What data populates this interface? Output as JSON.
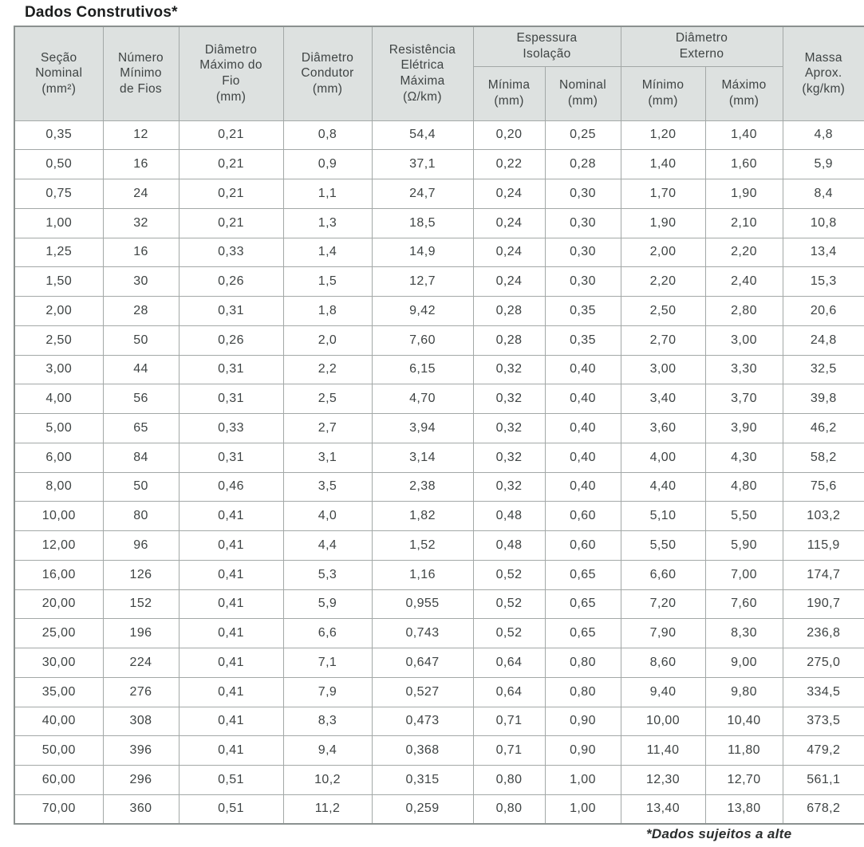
{
  "page": {
    "title": "Dados Construtivos*",
    "footnote": "*Dados sujeitos a alte"
  },
  "colors": {
    "header_bg": "#dde1e0",
    "border": "#a3a8a7",
    "outer_border": "#8b9190",
    "text": "#3f4444",
    "title_color": "#1b1d1d"
  },
  "table": {
    "headers": {
      "secao_nominal": [
        "Seção",
        "Nominal",
        "(mm²)"
      ],
      "numero_minimo_fios": [
        "Número",
        "Mínimo",
        "de Fios"
      ],
      "diametro_maximo_fio": [
        "Diâmetro",
        "Máximo do",
        "Fio",
        "(mm)"
      ],
      "diametro_condutor": [
        "Diâmetro",
        "Condutor",
        "(mm)"
      ],
      "resistencia_eletrica": [
        "Resistência",
        "Elétrica",
        "Máxima",
        "(Ω/km)"
      ],
      "espessura_isolacao": [
        "Espessura",
        "Isolação"
      ],
      "diametro_externo": [
        "Diâmetro",
        "Externo"
      ],
      "isolacao_minima": [
        "Mínima",
        "(mm)"
      ],
      "isolacao_nominal": [
        "Nominal",
        "(mm)"
      ],
      "externo_minimo": [
        "Mínimo",
        "(mm)"
      ],
      "externo_maximo": [
        "Máximo",
        "(mm)"
      ],
      "massa_aprox": [
        "Massa",
        "Aprox.",
        "(kg/km)"
      ]
    },
    "rows": [
      [
        "0,35",
        "12",
        "0,21",
        "0,8",
        "54,4",
        "0,20",
        "0,25",
        "1,20",
        "1,40",
        "4,8"
      ],
      [
        "0,50",
        "16",
        "0,21",
        "0,9",
        "37,1",
        "0,22",
        "0,28",
        "1,40",
        "1,60",
        "5,9"
      ],
      [
        "0,75",
        "24",
        "0,21",
        "1,1",
        "24,7",
        "0,24",
        "0,30",
        "1,70",
        "1,90",
        "8,4"
      ],
      [
        "1,00",
        "32",
        "0,21",
        "1,3",
        "18,5",
        "0,24",
        "0,30",
        "1,90",
        "2,10",
        "10,8"
      ],
      [
        "1,25",
        "16",
        "0,33",
        "1,4",
        "14,9",
        "0,24",
        "0,30",
        "2,00",
        "2,20",
        "13,4"
      ],
      [
        "1,50",
        "30",
        "0,26",
        "1,5",
        "12,7",
        "0,24",
        "0,30",
        "2,20",
        "2,40",
        "15,3"
      ],
      [
        "2,00",
        "28",
        "0,31",
        "1,8",
        "9,42",
        "0,28",
        "0,35",
        "2,50",
        "2,80",
        "20,6"
      ],
      [
        "2,50",
        "50",
        "0,26",
        "2,0",
        "7,60",
        "0,28",
        "0,35",
        "2,70",
        "3,00",
        "24,8"
      ],
      [
        "3,00",
        "44",
        "0,31",
        "2,2",
        "6,15",
        "0,32",
        "0,40",
        "3,00",
        "3,30",
        "32,5"
      ],
      [
        "4,00",
        "56",
        "0,31",
        "2,5",
        "4,70",
        "0,32",
        "0,40",
        "3,40",
        "3,70",
        "39,8"
      ],
      [
        "5,00",
        "65",
        "0,33",
        "2,7",
        "3,94",
        "0,32",
        "0,40",
        "3,60",
        "3,90",
        "46,2"
      ],
      [
        "6,00",
        "84",
        "0,31",
        "3,1",
        "3,14",
        "0,32",
        "0,40",
        "4,00",
        "4,30",
        "58,2"
      ],
      [
        "8,00",
        "50",
        "0,46",
        "3,5",
        "2,38",
        "0,32",
        "0,40",
        "4,40",
        "4,80",
        "75,6"
      ],
      [
        "10,00",
        "80",
        "0,41",
        "4,0",
        "1,82",
        "0,48",
        "0,60",
        "5,10",
        "5,50",
        "103,2"
      ],
      [
        "12,00",
        "96",
        "0,41",
        "4,4",
        "1,52",
        "0,48",
        "0,60",
        "5,50",
        "5,90",
        "115,9"
      ],
      [
        "16,00",
        "126",
        "0,41",
        "5,3",
        "1,16",
        "0,52",
        "0,65",
        "6,60",
        "7,00",
        "174,7"
      ],
      [
        "20,00",
        "152",
        "0,41",
        "5,9",
        "0,955",
        "0,52",
        "0,65",
        "7,20",
        "7,60",
        "190,7"
      ],
      [
        "25,00",
        "196",
        "0,41",
        "6,6",
        "0,743",
        "0,52",
        "0,65",
        "7,90",
        "8,30",
        "236,8"
      ],
      [
        "30,00",
        "224",
        "0,41",
        "7,1",
        "0,647",
        "0,64",
        "0,80",
        "8,60",
        "9,00",
        "275,0"
      ],
      [
        "35,00",
        "276",
        "0,41",
        "7,9",
        "0,527",
        "0,64",
        "0,80",
        "9,40",
        "9,80",
        "334,5"
      ],
      [
        "40,00",
        "308",
        "0,41",
        "8,3",
        "0,473",
        "0,71",
        "0,90",
        "10,00",
        "10,40",
        "373,5"
      ],
      [
        "50,00",
        "396",
        "0,41",
        "9,4",
        "0,368",
        "0,71",
        "0,90",
        "11,40",
        "11,80",
        "479,2"
      ],
      [
        "60,00",
        "296",
        "0,51",
        "10,2",
        "0,315",
        "0,80",
        "1,00",
        "12,30",
        "12,70",
        "561,1"
      ],
      [
        "70,00",
        "360",
        "0,51",
        "11,2",
        "0,259",
        "0,80",
        "1,00",
        "13,40",
        "13,80",
        "678,2"
      ]
    ]
  }
}
